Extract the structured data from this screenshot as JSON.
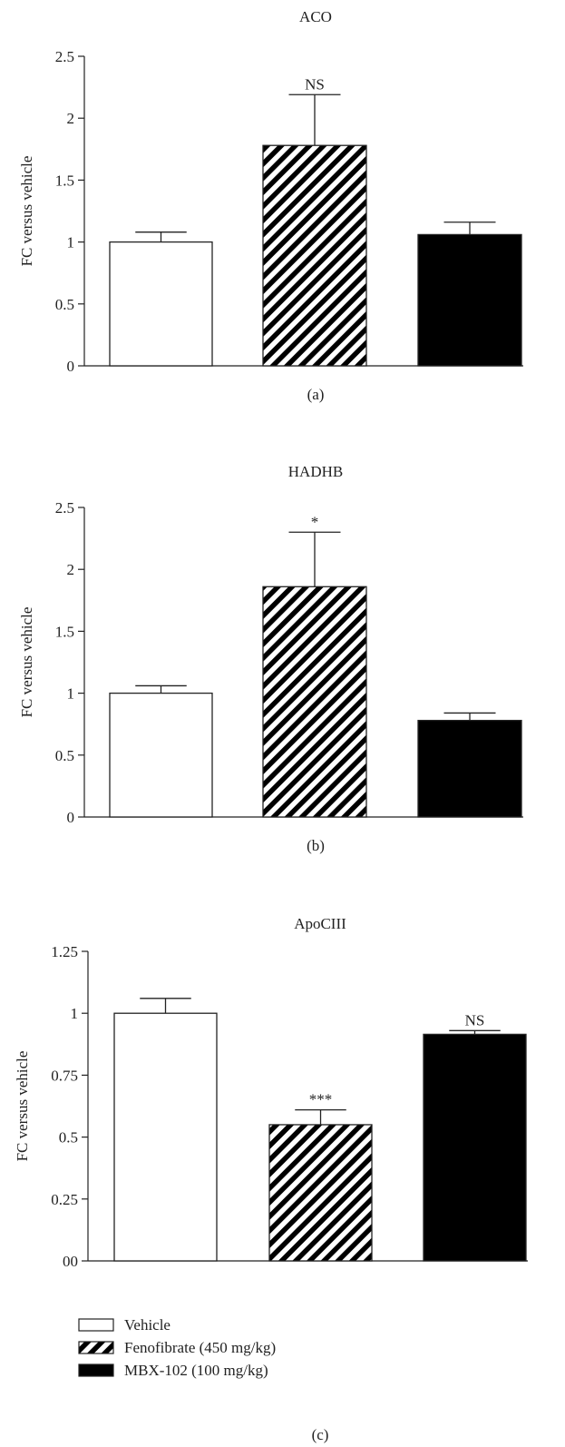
{
  "chart_data": [
    {
      "type": "bar",
      "title": "ACO",
      "ylabel": "FC versus vehicle",
      "ylim": [
        0,
        2.5
      ],
      "yticks": [
        "0",
        "0.5",
        "1",
        "1.5",
        "2",
        "2.5"
      ],
      "categories": [
        "Vehicle",
        "Fenofibrate (450 mg/kg)",
        "MBX-102 (100 mg/kg)"
      ],
      "values": [
        1.0,
        1.78,
        1.06
      ],
      "errors": [
        0.08,
        0.41,
        0.1
      ],
      "annotations": [
        "",
        "NS",
        ""
      ],
      "panel_label": "(a)"
    },
    {
      "type": "bar",
      "title": "HADHB",
      "ylabel": "FC versus vehicle",
      "ylim": [
        0,
        2.5
      ],
      "yticks": [
        "0",
        "0.5",
        "1",
        "1.5",
        "2",
        "2.5"
      ],
      "categories": [
        "Vehicle",
        "Fenofibrate (450 mg/kg)",
        "MBX-102 (100 mg/kg)"
      ],
      "values": [
        1.0,
        1.86,
        0.78
      ],
      "errors": [
        0.06,
        0.44,
        0.06
      ],
      "annotations": [
        "",
        "*",
        ""
      ],
      "panel_label": "(b)"
    },
    {
      "type": "bar",
      "title": "ApoCIII",
      "ylabel": "FC versus vehicle",
      "ylim": [
        0,
        1.25
      ],
      "yticks": [
        "00",
        "0.25",
        "0.5",
        "0.75",
        "1",
        "1.25"
      ],
      "categories": [
        "Vehicle",
        "Fenofibrate (450 mg/kg)",
        "MBX-102 (100 mg/kg)"
      ],
      "values": [
        1.0,
        0.55,
        0.915
      ],
      "errors": [
        0.06,
        0.06,
        0.015
      ],
      "annotations": [
        "",
        "***",
        "NS"
      ],
      "panel_label": "(c)"
    }
  ],
  "legend": {
    "items": [
      {
        "label": "Vehicle",
        "fill": "white"
      },
      {
        "label": "Fenofibrate (450 mg/kg)",
        "fill": "hatch"
      },
      {
        "label": "MBX-102 (100 mg/kg)",
        "fill": "black"
      }
    ]
  },
  "colors": {
    "axis": "#222222",
    "bar_outline": "#222222",
    "solid": "#000000",
    "hatch": "#000000"
  }
}
